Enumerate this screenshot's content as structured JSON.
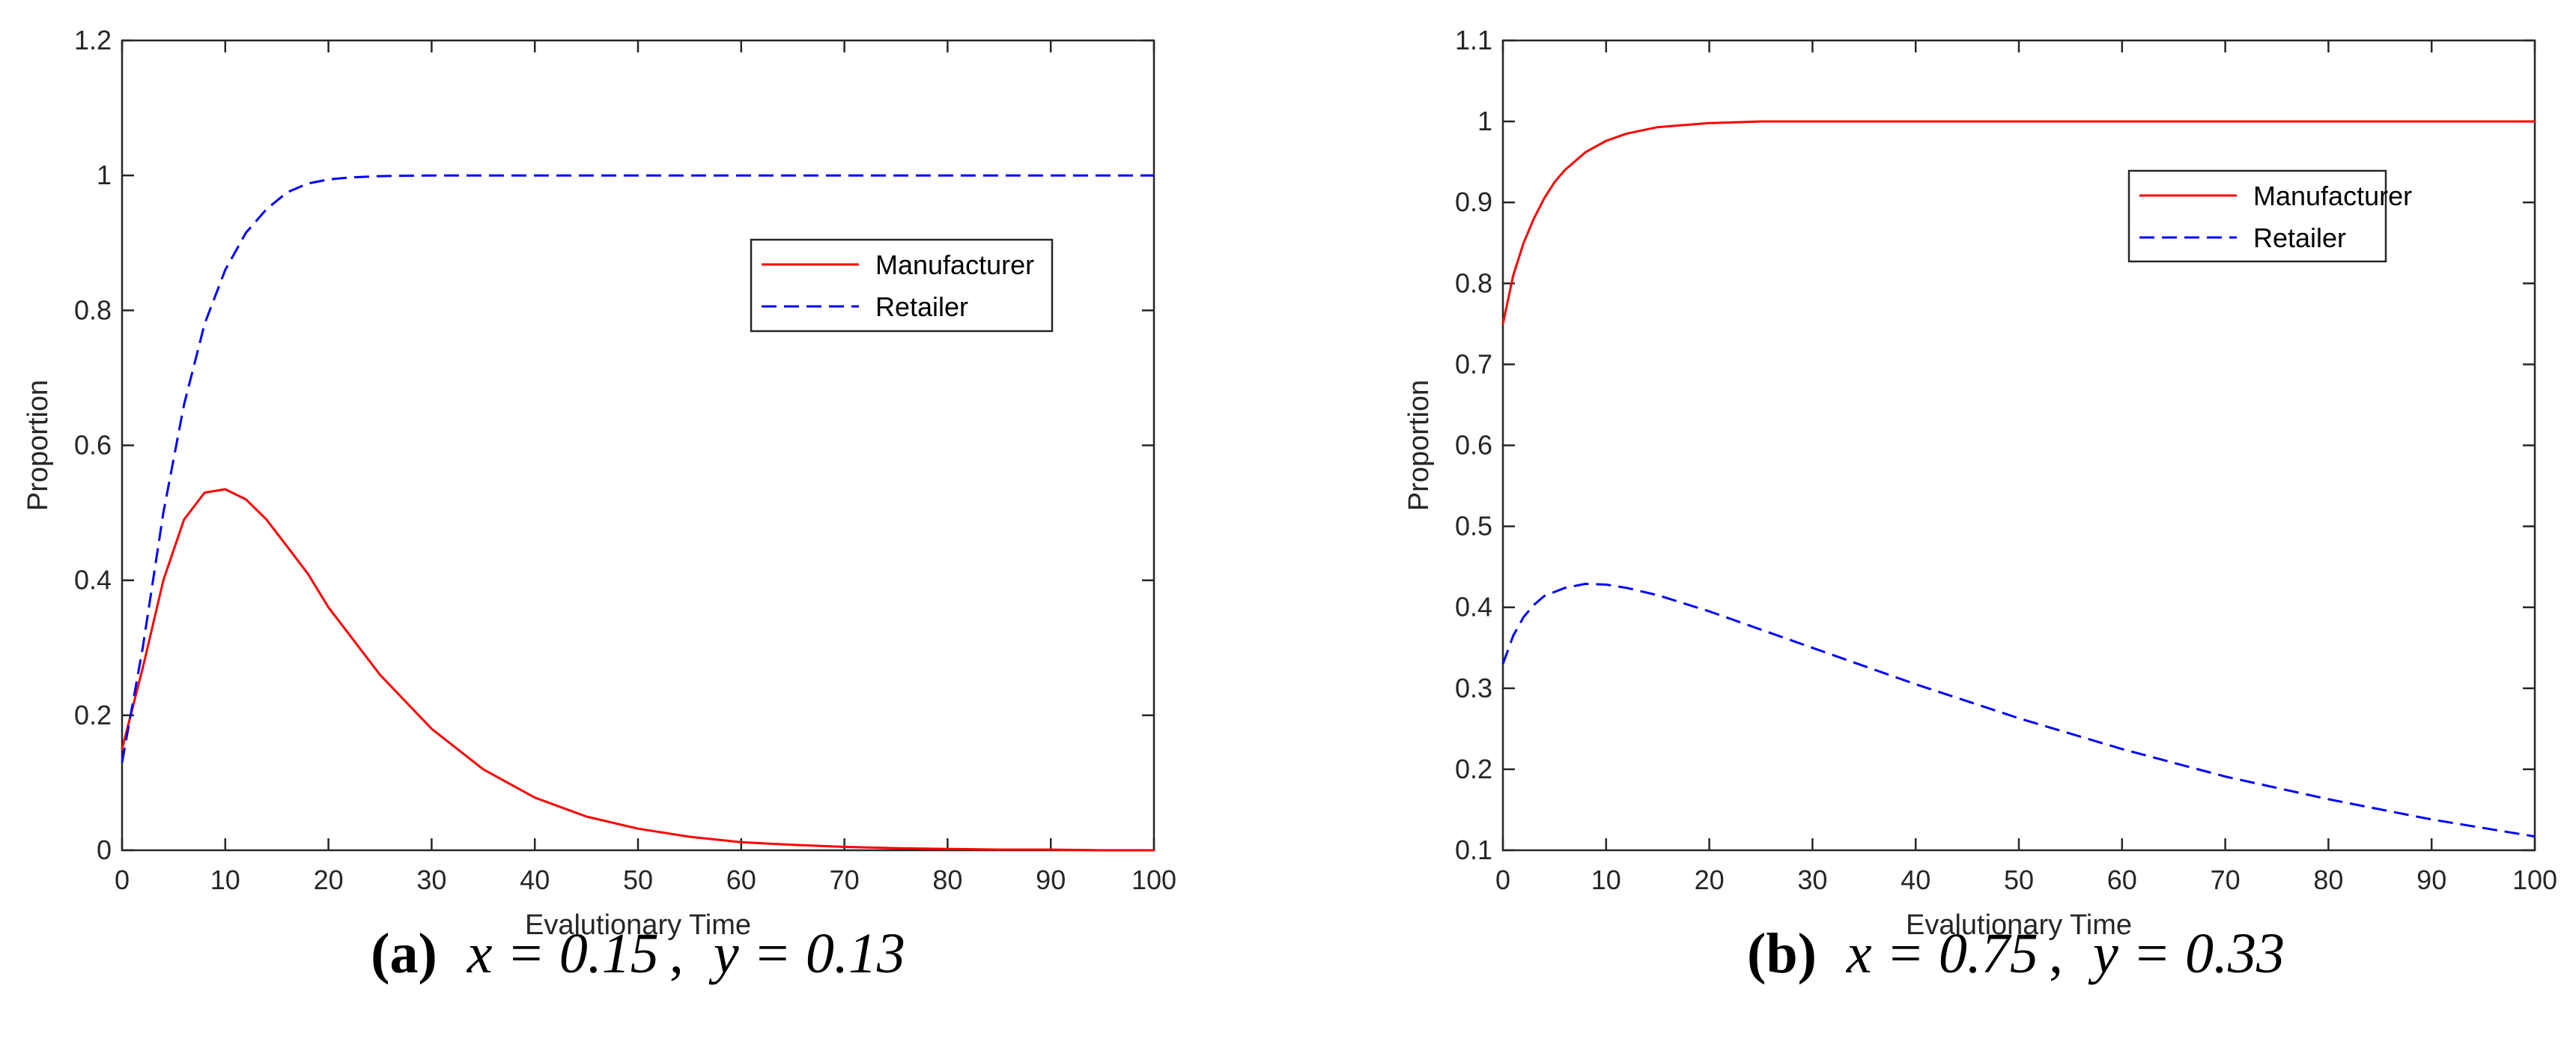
{
  "colors": {
    "manufacturer": "#ff0000",
    "retailer": "#0000ff",
    "axis": "#262626",
    "background": "#ffffff"
  },
  "chart_data": [
    {
      "id": "a",
      "type": "line",
      "title": "",
      "xlabel": "Evalutionary Time",
      "ylabel": "Proportion",
      "xlim": [
        0,
        100
      ],
      "ylim": [
        0,
        1.2
      ],
      "xticks": [
        0,
        10,
        20,
        30,
        40,
        50,
        60,
        70,
        80,
        90,
        100
      ],
      "yticks": [
        0,
        0.2,
        0.4,
        0.6,
        0.8,
        1,
        1.2
      ],
      "xtick_labels": [
        "0",
        "10",
        "20",
        "30",
        "40",
        "50",
        "60",
        "70",
        "80",
        "90",
        "100"
      ],
      "ytick_labels": [
        "0",
        "0.2",
        "0.4",
        "0.6",
        "0.8",
        "1",
        "1.2"
      ],
      "grid": false,
      "legend_position": "upper-right",
      "caption": {
        "letter": "(a)",
        "x_text": "x = 0.15",
        "sep": ",",
        "y_text": "y = 0.13"
      },
      "series": [
        {
          "name": "Manufacturer",
          "style": "solid",
          "x": [
            0,
            2,
            4,
            6,
            8,
            10,
            12,
            14,
            16,
            18,
            20,
            25,
            30,
            35,
            40,
            45,
            50,
            55,
            60,
            65,
            70,
            75,
            80,
            85,
            90,
            95,
            100
          ],
          "y": [
            0.15,
            0.27,
            0.4,
            0.49,
            0.53,
            0.535,
            0.52,
            0.49,
            0.45,
            0.41,
            0.36,
            0.26,
            0.18,
            0.12,
            0.078,
            0.05,
            0.032,
            0.02,
            0.012,
            0.008,
            0.005,
            0.003,
            0.002,
            0.001,
            0.001,
            0.0,
            0.0
          ]
        },
        {
          "name": "Retailer",
          "style": "dashed",
          "x": [
            0,
            2,
            4,
            6,
            8,
            10,
            12,
            14,
            16,
            18,
            20,
            22,
            25,
            30,
            40,
            50,
            60,
            70,
            80,
            90,
            100
          ],
          "y": [
            0.13,
            0.3,
            0.5,
            0.66,
            0.78,
            0.86,
            0.915,
            0.95,
            0.975,
            0.988,
            0.994,
            0.997,
            0.999,
            1.0,
            1.0,
            1.0,
            1.0,
            1.0,
            1.0,
            1.0,
            1.0
          ]
        }
      ]
    },
    {
      "id": "b",
      "type": "line",
      "title": "",
      "xlabel": "Evalutionary Time",
      "ylabel": "Proportion",
      "xlim": [
        0,
        100
      ],
      "ylim": [
        0.1,
        1.1
      ],
      "xticks": [
        0,
        10,
        20,
        30,
        40,
        50,
        60,
        70,
        80,
        90,
        100
      ],
      "yticks": [
        0.1,
        0.2,
        0.3,
        0.4,
        0.5,
        0.6,
        0.7,
        0.8,
        0.9,
        1,
        1.1
      ],
      "xtick_labels": [
        "0",
        "10",
        "20",
        "30",
        "40",
        "50",
        "60",
        "70",
        "80",
        "90",
        "100"
      ],
      "ytick_labels": [
        "0.1",
        "0.2",
        "0.3",
        "0.4",
        "0.5",
        "0.6",
        "0.7",
        "0.8",
        "0.9",
        "1",
        "1.1"
      ],
      "grid": false,
      "legend_position": "upper-right",
      "caption": {
        "letter": "(b)",
        "x_text": "x = 0.75",
        "sep": ",",
        "y_text": "y = 0.33"
      },
      "series": [
        {
          "name": "Manufacturer",
          "style": "solid",
          "x": [
            0,
            1,
            2,
            3,
            4,
            5,
            6,
            8,
            10,
            12,
            15,
            20,
            25,
            30,
            40,
            50,
            60,
            70,
            80,
            90,
            100
          ],
          "y": [
            0.75,
            0.81,
            0.85,
            0.88,
            0.905,
            0.925,
            0.94,
            0.962,
            0.976,
            0.985,
            0.993,
            0.998,
            1.0,
            1.0,
            1.0,
            1.0,
            1.0,
            1.0,
            1.0,
            1.0,
            1.0
          ]
        },
        {
          "name": "Retailer",
          "style": "dashed",
          "x": [
            0,
            1,
            2,
            3,
            4,
            6,
            8,
            10,
            12,
            15,
            20,
            30,
            40,
            50,
            60,
            70,
            80,
            90,
            100
          ],
          "y": [
            0.33,
            0.365,
            0.388,
            0.403,
            0.414,
            0.424,
            0.429,
            0.428,
            0.424,
            0.415,
            0.395,
            0.35,
            0.305,
            0.263,
            0.225,
            0.191,
            0.163,
            0.138,
            0.117
          ]
        }
      ]
    }
  ]
}
